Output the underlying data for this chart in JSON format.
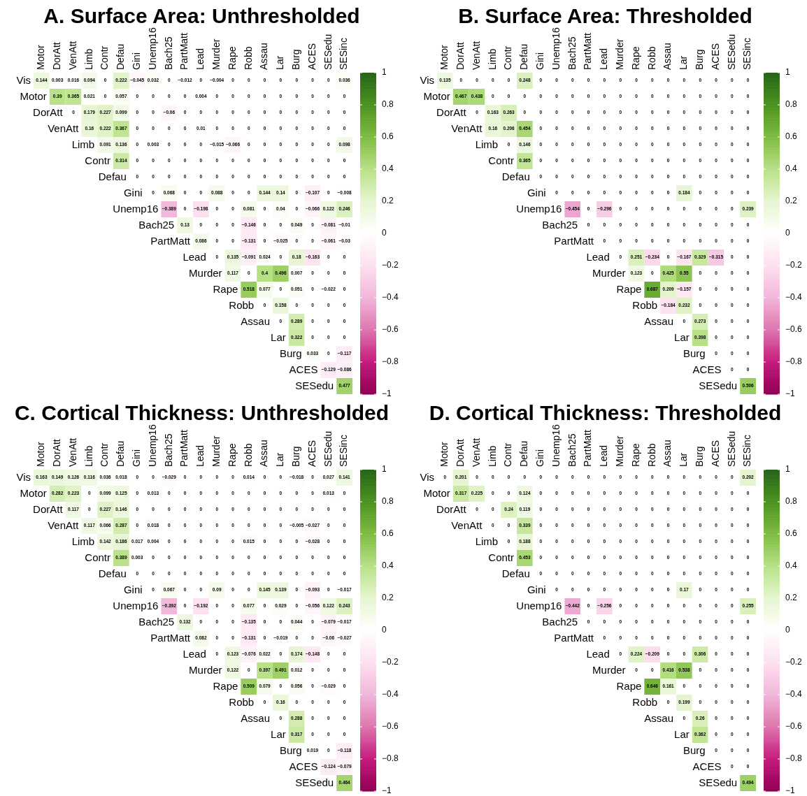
{
  "chart_data": [
    {
      "type": "heatmap",
      "title": "A. Surface Area: Unthresholded",
      "data_labels": true,
      "clim": [
        -1,
        1
      ],
      "cticks": [
        {
          "value": -1,
          "label": "−1"
        },
        {
          "value": -0.8,
          "label": "−0.8"
        },
        {
          "value": -0.6,
          "label": "−0.6"
        },
        {
          "value": -0.4,
          "label": "−0.4"
        },
        {
          "value": -0.2,
          "label": "−0.2"
        },
        0,
        0.2,
        0.4,
        0.6,
        0.8,
        1
      ],
      "categories": [
        "Motor",
        "DorAtt",
        "VenAtt",
        "Limb",
        "Contr",
        "Defau",
        "Gini",
        "Unemp16",
        "Bach25",
        "PartMatt",
        "Lead",
        "Murder",
        "Rape",
        "Robb",
        "Assau",
        "Lar",
        "Burg",
        "ACES",
        "SESedu",
        "SESinc"
      ],
      "y_categories": [
        "Vis",
        "Motor",
        "DorAtt",
        "VenAtt",
        "Limb",
        "Contr",
        "Defau",
        "Gini",
        "Unemp16",
        "Bach25",
        "PartMatt",
        "Lead",
        "Murder",
        "Rape",
        "Robb",
        "Assau",
        "Lar",
        "Burg",
        "ACES",
        "SESedu"
      ],
      "cells": [
        [
          0.144,
          0.003,
          0.016,
          0.094,
          0,
          0.222,
          -0.045,
          0.032,
          0,
          -0.012,
          0,
          -0.004,
          0,
          0,
          0,
          0,
          0,
          0,
          0,
          0.036
        ],
        [
          null,
          0.39,
          0.365,
          0.021,
          0,
          0.057,
          0,
          0,
          0,
          0,
          0.004,
          0,
          0,
          0,
          0,
          0,
          0,
          0,
          0,
          0
        ],
        [
          null,
          null,
          0,
          0.179,
          0.227,
          0.099,
          0,
          0,
          -0.06,
          0,
          0,
          0,
          0,
          0,
          0,
          0,
          0,
          0,
          0,
          0
        ],
        [
          null,
          null,
          null,
          0.16,
          0.222,
          0.367,
          0,
          0,
          0,
          0,
          0.01,
          0,
          0,
          0,
          0,
          0,
          0,
          0,
          0,
          0
        ],
        [
          null,
          null,
          null,
          null,
          0.091,
          0.136,
          0,
          0.003,
          0,
          0,
          0,
          -0.015,
          -0.066,
          0,
          0,
          0,
          0,
          0,
          0,
          0.098
        ],
        [
          null,
          null,
          null,
          null,
          null,
          0.314,
          0,
          0,
          0,
          0,
          0,
          0,
          0,
          0,
          0,
          0,
          0,
          0,
          0,
          0
        ],
        [
          null,
          null,
          null,
          null,
          null,
          null,
          0,
          0,
          0,
          0,
          0,
          0,
          0,
          0,
          0,
          0,
          0,
          0,
          0,
          0
        ],
        [
          null,
          null,
          null,
          null,
          null,
          null,
          null,
          0,
          0.068,
          0,
          0,
          0.088,
          0,
          0,
          0.144,
          0.14,
          0,
          -0.107,
          0,
          -0.008
        ],
        [
          null,
          null,
          null,
          null,
          null,
          null,
          null,
          null,
          -0.389,
          0,
          -0.198,
          0,
          0,
          0.081,
          0,
          0.04,
          0,
          -0.066,
          0.122,
          0.246
        ],
        [
          null,
          null,
          null,
          null,
          null,
          null,
          null,
          null,
          null,
          0.13,
          0,
          0,
          0,
          -0.146,
          0,
          0,
          0.049,
          0,
          -0.081,
          -0.01
        ],
        [
          null,
          null,
          null,
          null,
          null,
          null,
          null,
          null,
          null,
          null,
          0.086,
          0,
          0,
          -0.131,
          0,
          -0.025,
          0,
          0,
          -0.061,
          -0.03
        ],
        [
          null,
          null,
          null,
          null,
          null,
          null,
          null,
          null,
          null,
          null,
          null,
          0,
          0.135,
          -0.091,
          0.024,
          0,
          0.18,
          -0.163,
          0,
          0
        ],
        [
          null,
          null,
          null,
          null,
          null,
          null,
          null,
          null,
          null,
          null,
          null,
          null,
          0.117,
          0,
          0.4,
          0.496,
          0.007,
          0,
          0,
          0
        ],
        [
          null,
          null,
          null,
          null,
          null,
          null,
          null,
          null,
          null,
          null,
          null,
          null,
          null,
          0.518,
          0.077,
          0,
          0.051,
          0,
          -0.022,
          0
        ],
        [
          null,
          null,
          null,
          null,
          null,
          null,
          null,
          null,
          null,
          null,
          null,
          null,
          null,
          null,
          0,
          0.158,
          0,
          0,
          0,
          0
        ],
        [
          null,
          null,
          null,
          null,
          null,
          null,
          null,
          null,
          null,
          null,
          null,
          null,
          null,
          null,
          null,
          0,
          0.289,
          0,
          0,
          0
        ],
        [
          null,
          null,
          null,
          null,
          null,
          null,
          null,
          null,
          null,
          null,
          null,
          null,
          null,
          null,
          null,
          null,
          0.322,
          0,
          0,
          0
        ],
        [
          null,
          null,
          null,
          null,
          null,
          null,
          null,
          null,
          null,
          null,
          null,
          null,
          null,
          null,
          null,
          null,
          null,
          0.033,
          0,
          -0.117
        ],
        [
          null,
          null,
          null,
          null,
          null,
          null,
          null,
          null,
          null,
          null,
          null,
          null,
          null,
          null,
          null,
          null,
          null,
          null,
          -0.129,
          -0.086
        ],
        [
          null,
          null,
          null,
          null,
          null,
          null,
          null,
          null,
          null,
          null,
          null,
          null,
          null,
          null,
          null,
          null,
          null,
          null,
          null,
          0.477
        ]
      ]
    },
    {
      "type": "heatmap",
      "title": "B. Surface Area: Thresholded",
      "data_labels": true,
      "clim": [
        -1,
        1
      ],
      "cticks": [
        {
          "value": -1,
          "label": "−1"
        },
        {
          "value": -0.8,
          "label": "−0.8"
        },
        {
          "value": -0.6,
          "label": "−0.6"
        },
        {
          "value": -0.4,
          "label": "−0.4"
        },
        {
          "value": -0.2,
          "label": "−0.2"
        },
        0,
        0.2,
        0.4,
        0.6,
        0.8,
        1
      ],
      "categories": [
        "Motor",
        "DorAtt",
        "VenAtt",
        "Limb",
        "Contr",
        "Defau",
        "Gini",
        "Unemp16",
        "Bach25",
        "PartMatt",
        "Lead",
        "Murder",
        "Rape",
        "Robb",
        "Assau",
        "Lar",
        "Burg",
        "ACES",
        "SESedu",
        "SESinc"
      ],
      "y_categories": [
        "Vis",
        "Motor",
        "DorAtt",
        "VenAtt",
        "Limb",
        "Contr",
        "Defau",
        "Gini",
        "Unemp16",
        "Bach25",
        "PartMatt",
        "Lead",
        "Murder",
        "Rape",
        "Robb",
        "Assau",
        "Lar",
        "Burg",
        "ACES",
        "SESedu"
      ],
      "cells": [
        [
          0.135,
          0,
          0,
          0,
          0,
          0.248,
          0,
          0,
          0,
          0,
          0,
          0,
          0,
          0,
          0,
          0,
          0,
          0,
          0,
          0
        ],
        [
          null,
          0.467,
          0.438,
          0,
          0,
          0,
          0,
          0,
          0,
          0,
          0,
          0,
          0,
          0,
          0,
          0,
          0,
          0,
          0,
          0
        ],
        [
          null,
          null,
          0,
          0.163,
          0.263,
          0,
          0,
          0,
          0,
          0,
          0,
          0,
          0,
          0,
          0,
          0,
          0,
          0,
          0,
          0
        ],
        [
          null,
          null,
          null,
          0.16,
          0.206,
          0.454,
          0,
          0,
          0,
          0,
          0,
          0,
          0,
          0,
          0,
          0,
          0,
          0,
          0,
          0
        ],
        [
          null,
          null,
          null,
          null,
          0,
          0.146,
          0,
          0,
          0,
          0,
          0,
          0,
          0,
          0,
          0,
          0,
          0,
          0,
          0,
          0
        ],
        [
          null,
          null,
          null,
          null,
          null,
          0.365,
          0,
          0,
          0,
          0,
          0,
          0,
          0,
          0,
          0,
          0,
          0,
          0,
          0,
          0
        ],
        [
          null,
          null,
          null,
          null,
          null,
          null,
          0,
          0,
          0,
          0,
          0,
          0,
          0,
          0,
          0,
          0,
          0,
          0,
          0,
          0
        ],
        [
          null,
          null,
          null,
          null,
          null,
          null,
          null,
          0,
          0,
          0,
          0,
          0,
          0,
          0,
          0,
          0.184,
          0,
          0,
          0,
          0
        ],
        [
          null,
          null,
          null,
          null,
          null,
          null,
          null,
          null,
          -0.454,
          0,
          -0.296,
          0,
          0,
          0,
          0,
          0,
          0,
          0,
          0,
          0.239
        ],
        [
          null,
          null,
          null,
          null,
          null,
          null,
          null,
          null,
          null,
          0,
          0,
          0,
          0,
          0,
          0,
          0,
          0,
          0,
          0,
          0
        ],
        [
          null,
          null,
          null,
          null,
          null,
          null,
          null,
          null,
          null,
          null,
          0,
          0,
          0,
          0,
          0,
          0,
          0,
          0,
          0,
          0
        ],
        [
          null,
          null,
          null,
          null,
          null,
          null,
          null,
          null,
          null,
          null,
          null,
          0,
          0.251,
          -0.234,
          0,
          -0.167,
          0.329,
          -0.315,
          0,
          0
        ],
        [
          null,
          null,
          null,
          null,
          null,
          null,
          null,
          null,
          null,
          null,
          null,
          null,
          0.123,
          0,
          0.425,
          0.55,
          0,
          0,
          0,
          0
        ],
        [
          null,
          null,
          null,
          null,
          null,
          null,
          null,
          null,
          null,
          null,
          null,
          null,
          null,
          0.687,
          0.209,
          -0.157,
          0,
          0,
          0,
          0
        ],
        [
          null,
          null,
          null,
          null,
          null,
          null,
          null,
          null,
          null,
          null,
          null,
          null,
          null,
          null,
          -0.184,
          0.232,
          0,
          0,
          0,
          0
        ],
        [
          null,
          null,
          null,
          null,
          null,
          null,
          null,
          null,
          null,
          null,
          null,
          null,
          null,
          null,
          null,
          0,
          0.273,
          0,
          0,
          0
        ],
        [
          null,
          null,
          null,
          null,
          null,
          null,
          null,
          null,
          null,
          null,
          null,
          null,
          null,
          null,
          null,
          null,
          0.398,
          0,
          0,
          0
        ],
        [
          null,
          null,
          null,
          null,
          null,
          null,
          null,
          null,
          null,
          null,
          null,
          null,
          null,
          null,
          null,
          null,
          null,
          0,
          0,
          0
        ],
        [
          null,
          null,
          null,
          null,
          null,
          null,
          null,
          null,
          null,
          null,
          null,
          null,
          null,
          null,
          null,
          null,
          null,
          null,
          0,
          0
        ],
        [
          null,
          null,
          null,
          null,
          null,
          null,
          null,
          null,
          null,
          null,
          null,
          null,
          null,
          null,
          null,
          null,
          null,
          null,
          null,
          0.506
        ]
      ]
    },
    {
      "type": "heatmap",
      "title": "C. Cortical Thickness: Unthresholded",
      "data_labels": true,
      "clim": [
        -1,
        1
      ],
      "cticks": [
        {
          "value": -1,
          "label": "−1"
        },
        {
          "value": -0.8,
          "label": "−0.8"
        },
        {
          "value": -0.6,
          "label": "−0.6"
        },
        {
          "value": -0.4,
          "label": "−0.4"
        },
        {
          "value": -0.2,
          "label": "−0.2"
        },
        0,
        0.2,
        0.4,
        0.6,
        0.8,
        1
      ],
      "categories": [
        "Motor",
        "DorAtt",
        "VenAtt",
        "Limb",
        "Contr",
        "Defau",
        "Gini",
        "Unemp16",
        "Bach25",
        "PartMatt",
        "Lead",
        "Murder",
        "Rape",
        "Robb",
        "Assau",
        "Lar",
        "Burg",
        "ACES",
        "SESedu",
        "SESinc"
      ],
      "y_categories": [
        "Vis",
        "Motor",
        "DorAtt",
        "VenAtt",
        "Limb",
        "Contr",
        "Defau",
        "Gini",
        "Unemp16",
        "Bach25",
        "PartMatt",
        "Lead",
        "Murder",
        "Rape",
        "Robb",
        "Assau",
        "Lar",
        "Burg",
        "ACES",
        "SESedu"
      ],
      "cells": [
        [
          0.163,
          0.149,
          0.126,
          0.116,
          0.036,
          0.018,
          0,
          0,
          -0.029,
          0,
          0,
          0,
          0,
          0.014,
          0,
          0,
          -0.018,
          0,
          0.027,
          0.141
        ],
        [
          null,
          0.282,
          0.223,
          0,
          0.099,
          0.125,
          0,
          0.013,
          0,
          0,
          0,
          0,
          0,
          0,
          0,
          0,
          0,
          0,
          0.013,
          0
        ],
        [
          null,
          null,
          0.117,
          0,
          0.227,
          0.146,
          0,
          0,
          0,
          0,
          0,
          0,
          0,
          0,
          0,
          0,
          0,
          0,
          0,
          0
        ],
        [
          null,
          null,
          null,
          0.117,
          0.066,
          0.287,
          0,
          0.018,
          0,
          0,
          0,
          0,
          0,
          0,
          0,
          0,
          -0.005,
          -0.027,
          0,
          0
        ],
        [
          null,
          null,
          null,
          null,
          0.142,
          0.186,
          0.017,
          0.004,
          0,
          0,
          0,
          0,
          0,
          0.015,
          0,
          0,
          0,
          -0.028,
          0,
          0
        ],
        [
          null,
          null,
          null,
          null,
          null,
          0.389,
          0.003,
          0,
          0,
          0,
          0,
          0,
          0,
          0,
          0,
          0,
          0,
          0,
          0,
          0
        ],
        [
          null,
          null,
          null,
          null,
          null,
          null,
          0,
          0,
          0,
          0,
          0,
          0,
          0,
          0,
          0,
          0,
          0,
          0,
          0,
          0
        ],
        [
          null,
          null,
          null,
          null,
          null,
          null,
          null,
          0,
          0.067,
          0,
          0,
          0.09,
          0,
          0,
          0.145,
          0.139,
          0,
          -0.093,
          0,
          -0.017
        ],
        [
          null,
          null,
          null,
          null,
          null,
          null,
          null,
          null,
          -0.392,
          0,
          -0.192,
          0,
          0,
          0.077,
          0,
          0.029,
          0,
          -0.056,
          0.122,
          0.243
        ],
        [
          null,
          null,
          null,
          null,
          null,
          null,
          null,
          null,
          null,
          0.132,
          0,
          0,
          0,
          -0.135,
          0,
          0,
          0.044,
          0,
          -0.079,
          -0.017
        ],
        [
          null,
          null,
          null,
          null,
          null,
          null,
          null,
          null,
          null,
          null,
          0.082,
          0,
          0,
          -0.131,
          0,
          -0.019,
          0,
          0,
          -0.06,
          -0.027
        ],
        [
          null,
          null,
          null,
          null,
          null,
          null,
          null,
          null,
          null,
          null,
          null,
          0,
          0.123,
          -0.076,
          0.022,
          0,
          0.174,
          -0.148,
          0,
          0
        ],
        [
          null,
          null,
          null,
          null,
          null,
          null,
          null,
          null,
          null,
          null,
          null,
          null,
          0.122,
          0,
          0.397,
          0.491,
          0.012,
          0,
          0,
          0
        ],
        [
          null,
          null,
          null,
          null,
          null,
          null,
          null,
          null,
          null,
          null,
          null,
          null,
          null,
          0.509,
          0.079,
          0,
          0.056,
          0,
          -0.029,
          0
        ],
        [
          null,
          null,
          null,
          null,
          null,
          null,
          null,
          null,
          null,
          null,
          null,
          null,
          null,
          null,
          0,
          0.16,
          0,
          0,
          0,
          0
        ],
        [
          null,
          null,
          null,
          null,
          null,
          null,
          null,
          null,
          null,
          null,
          null,
          null,
          null,
          null,
          null,
          0,
          0.288,
          0,
          0,
          0
        ],
        [
          null,
          null,
          null,
          null,
          null,
          null,
          null,
          null,
          null,
          null,
          null,
          null,
          null,
          null,
          null,
          null,
          0.317,
          0,
          0,
          0
        ],
        [
          null,
          null,
          null,
          null,
          null,
          null,
          null,
          null,
          null,
          null,
          null,
          null,
          null,
          null,
          null,
          null,
          null,
          0.019,
          0,
          -0.118
        ],
        [
          null,
          null,
          null,
          null,
          null,
          null,
          null,
          null,
          null,
          null,
          null,
          null,
          null,
          null,
          null,
          null,
          null,
          null,
          -0.124,
          -0.079
        ],
        [
          null,
          null,
          null,
          null,
          null,
          null,
          null,
          null,
          null,
          null,
          null,
          null,
          null,
          null,
          null,
          null,
          null,
          null,
          null,
          0.464
        ]
      ]
    },
    {
      "type": "heatmap",
      "title": "D. Cortical Thickness: Thresholded",
      "data_labels": true,
      "clim": [
        -1,
        1
      ],
      "cticks": [
        {
          "value": -1,
          "label": "−1"
        },
        {
          "value": -0.8,
          "label": "−0.8"
        },
        {
          "value": -0.6,
          "label": "−0.6"
        },
        {
          "value": -0.4,
          "label": "−0.4"
        },
        {
          "value": -0.2,
          "label": "−0.2"
        },
        0,
        0.2,
        0.4,
        0.6,
        0.8,
        1
      ],
      "categories": [
        "Motor",
        "DorAtt",
        "VenAtt",
        "Limb",
        "Contr",
        "Defau",
        "Gini",
        "Unemp16",
        "Bach25",
        "PartMatt",
        "Lead",
        "Murder",
        "Rape",
        "Robb",
        "Assau",
        "Lar",
        "Burg",
        "ACES",
        "SESedu",
        "SESinc"
      ],
      "y_categories": [
        "Vis",
        "Motor",
        "DorAtt",
        "VenAtt",
        "Limb",
        "Contr",
        "Defau",
        "Gini",
        "Unemp16",
        "Bach25",
        "PartMatt",
        "Lead",
        "Murder",
        "Rape",
        "Robb",
        "Assau",
        "Lar",
        "Burg",
        "ACES",
        "SESedu"
      ],
      "cells": [
        [
          0,
          0.201,
          0,
          0,
          0,
          0,
          0,
          0,
          0,
          0,
          0,
          0,
          0,
          0,
          0,
          0,
          0,
          0,
          0,
          0.202
        ],
        [
          null,
          0.317,
          0.225,
          0,
          0,
          0.124,
          0,
          0,
          0,
          0,
          0,
          0,
          0,
          0,
          0,
          0,
          0,
          0,
          0,
          0
        ],
        [
          null,
          null,
          0,
          0,
          0.24,
          0.119,
          0,
          0,
          0,
          0,
          0,
          0,
          0,
          0,
          0,
          0,
          0,
          0,
          0,
          0
        ],
        [
          null,
          null,
          null,
          0,
          0,
          0.339,
          0,
          0,
          0,
          0,
          0,
          0,
          0,
          0,
          0,
          0,
          0,
          0,
          0,
          0
        ],
        [
          null,
          null,
          null,
          null,
          0,
          0.188,
          0,
          0,
          0,
          0,
          0,
          0,
          0,
          0,
          0,
          0,
          0,
          0,
          0,
          0
        ],
        [
          null,
          null,
          null,
          null,
          null,
          0.453,
          0,
          0,
          0,
          0,
          0,
          0,
          0,
          0,
          0,
          0,
          0,
          0,
          0,
          0
        ],
        [
          null,
          null,
          null,
          null,
          null,
          null,
          0,
          0,
          0,
          0,
          0,
          0,
          0,
          0,
          0,
          0,
          0,
          0,
          0,
          0
        ],
        [
          null,
          null,
          null,
          null,
          null,
          null,
          null,
          0,
          0,
          0,
          0,
          0,
          0,
          0,
          0,
          0.17,
          0,
          0,
          0,
          0
        ],
        [
          null,
          null,
          null,
          null,
          null,
          null,
          null,
          null,
          -0.442,
          0,
          -0.256,
          0,
          0,
          0,
          0,
          0,
          0,
          0,
          0,
          0.255
        ],
        [
          null,
          null,
          null,
          null,
          null,
          null,
          null,
          null,
          null,
          0,
          0,
          0,
          0,
          0,
          0,
          0,
          0,
          0,
          0,
          0
        ],
        [
          null,
          null,
          null,
          null,
          null,
          null,
          null,
          null,
          null,
          null,
          0,
          0,
          0,
          0,
          0,
          0,
          0,
          0,
          0,
          0
        ],
        [
          null,
          null,
          null,
          null,
          null,
          null,
          null,
          null,
          null,
          null,
          null,
          0,
          0.224,
          -0.209,
          0,
          0,
          0.306,
          0,
          0,
          0
        ],
        [
          null,
          null,
          null,
          null,
          null,
          null,
          null,
          null,
          null,
          null,
          null,
          null,
          0,
          0,
          0.416,
          0.538,
          0,
          0,
          0,
          0
        ],
        [
          null,
          null,
          null,
          null,
          null,
          null,
          null,
          null,
          null,
          null,
          null,
          null,
          null,
          0.646,
          0.161,
          0,
          0,
          0,
          0,
          0
        ],
        [
          null,
          null,
          null,
          null,
          null,
          null,
          null,
          null,
          null,
          null,
          null,
          null,
          null,
          null,
          0,
          0.199,
          0,
          0,
          0,
          0
        ],
        [
          null,
          null,
          null,
          null,
          null,
          null,
          null,
          null,
          null,
          null,
          null,
          null,
          null,
          null,
          null,
          0,
          0.26,
          0,
          0,
          0
        ],
        [
          null,
          null,
          null,
          null,
          null,
          null,
          null,
          null,
          null,
          null,
          null,
          null,
          null,
          null,
          null,
          null,
          0.362,
          0,
          0,
          0
        ],
        [
          null,
          null,
          null,
          null,
          null,
          null,
          null,
          null,
          null,
          null,
          null,
          null,
          null,
          null,
          null,
          null,
          null,
          0,
          0,
          0
        ],
        [
          null,
          null,
          null,
          null,
          null,
          null,
          null,
          null,
          null,
          null,
          null,
          null,
          null,
          null,
          null,
          null,
          null,
          null,
          0,
          0
        ],
        [
          null,
          null,
          null,
          null,
          null,
          null,
          null,
          null,
          null,
          null,
          null,
          null,
          null,
          null,
          null,
          null,
          null,
          null,
          null,
          0.494
        ]
      ]
    }
  ]
}
